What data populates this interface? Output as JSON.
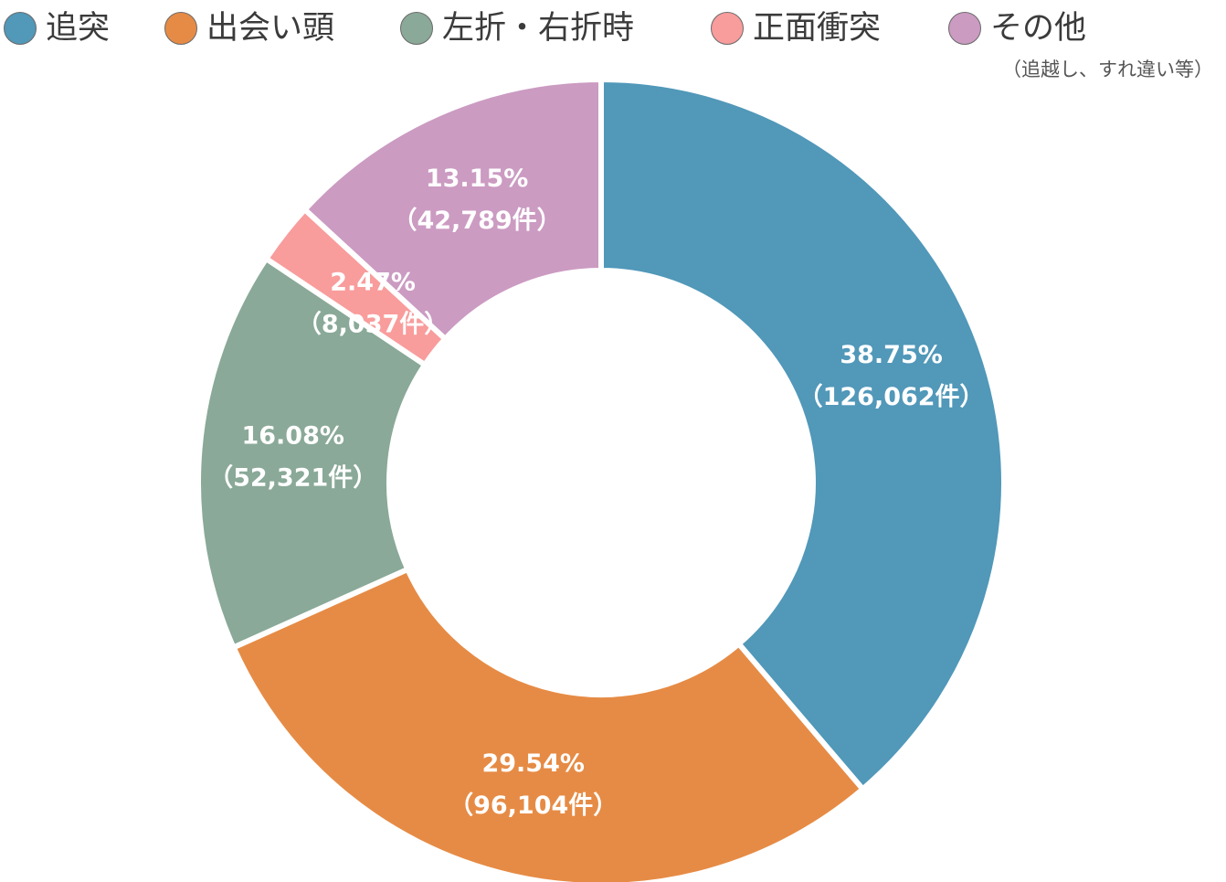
{
  "chart_data": {
    "type": "pie",
    "subtype": "donut",
    "title": "",
    "legend_position": "top",
    "slices": [
      {
        "label": "追突",
        "percent_label": "38.75%",
        "count_label": "（126,062件）",
        "value": 126062,
        "color": "#5198b9"
      },
      {
        "label": "出会い頭",
        "percent_label": "29.54%",
        "count_label": "（96,104件）",
        "value": 96104,
        "color": "#e68b45"
      },
      {
        "label": "左折・右折時",
        "percent_label": "16.08%",
        "count_label": "（52,321件）",
        "value": 52321,
        "color": "#8aa998"
      },
      {
        "label": "正面衝突",
        "percent_label": "2.47%",
        "count_label": "（8,037件）",
        "value": 8037,
        "color": "#f99c9c"
      },
      {
        "label": "その他",
        "percent_label": "13.15%",
        "count_label": "（42,789件）",
        "value": 42789,
        "color": "#cb9bc2"
      }
    ],
    "legend_note": "（追越し、すれ違い等）"
  }
}
